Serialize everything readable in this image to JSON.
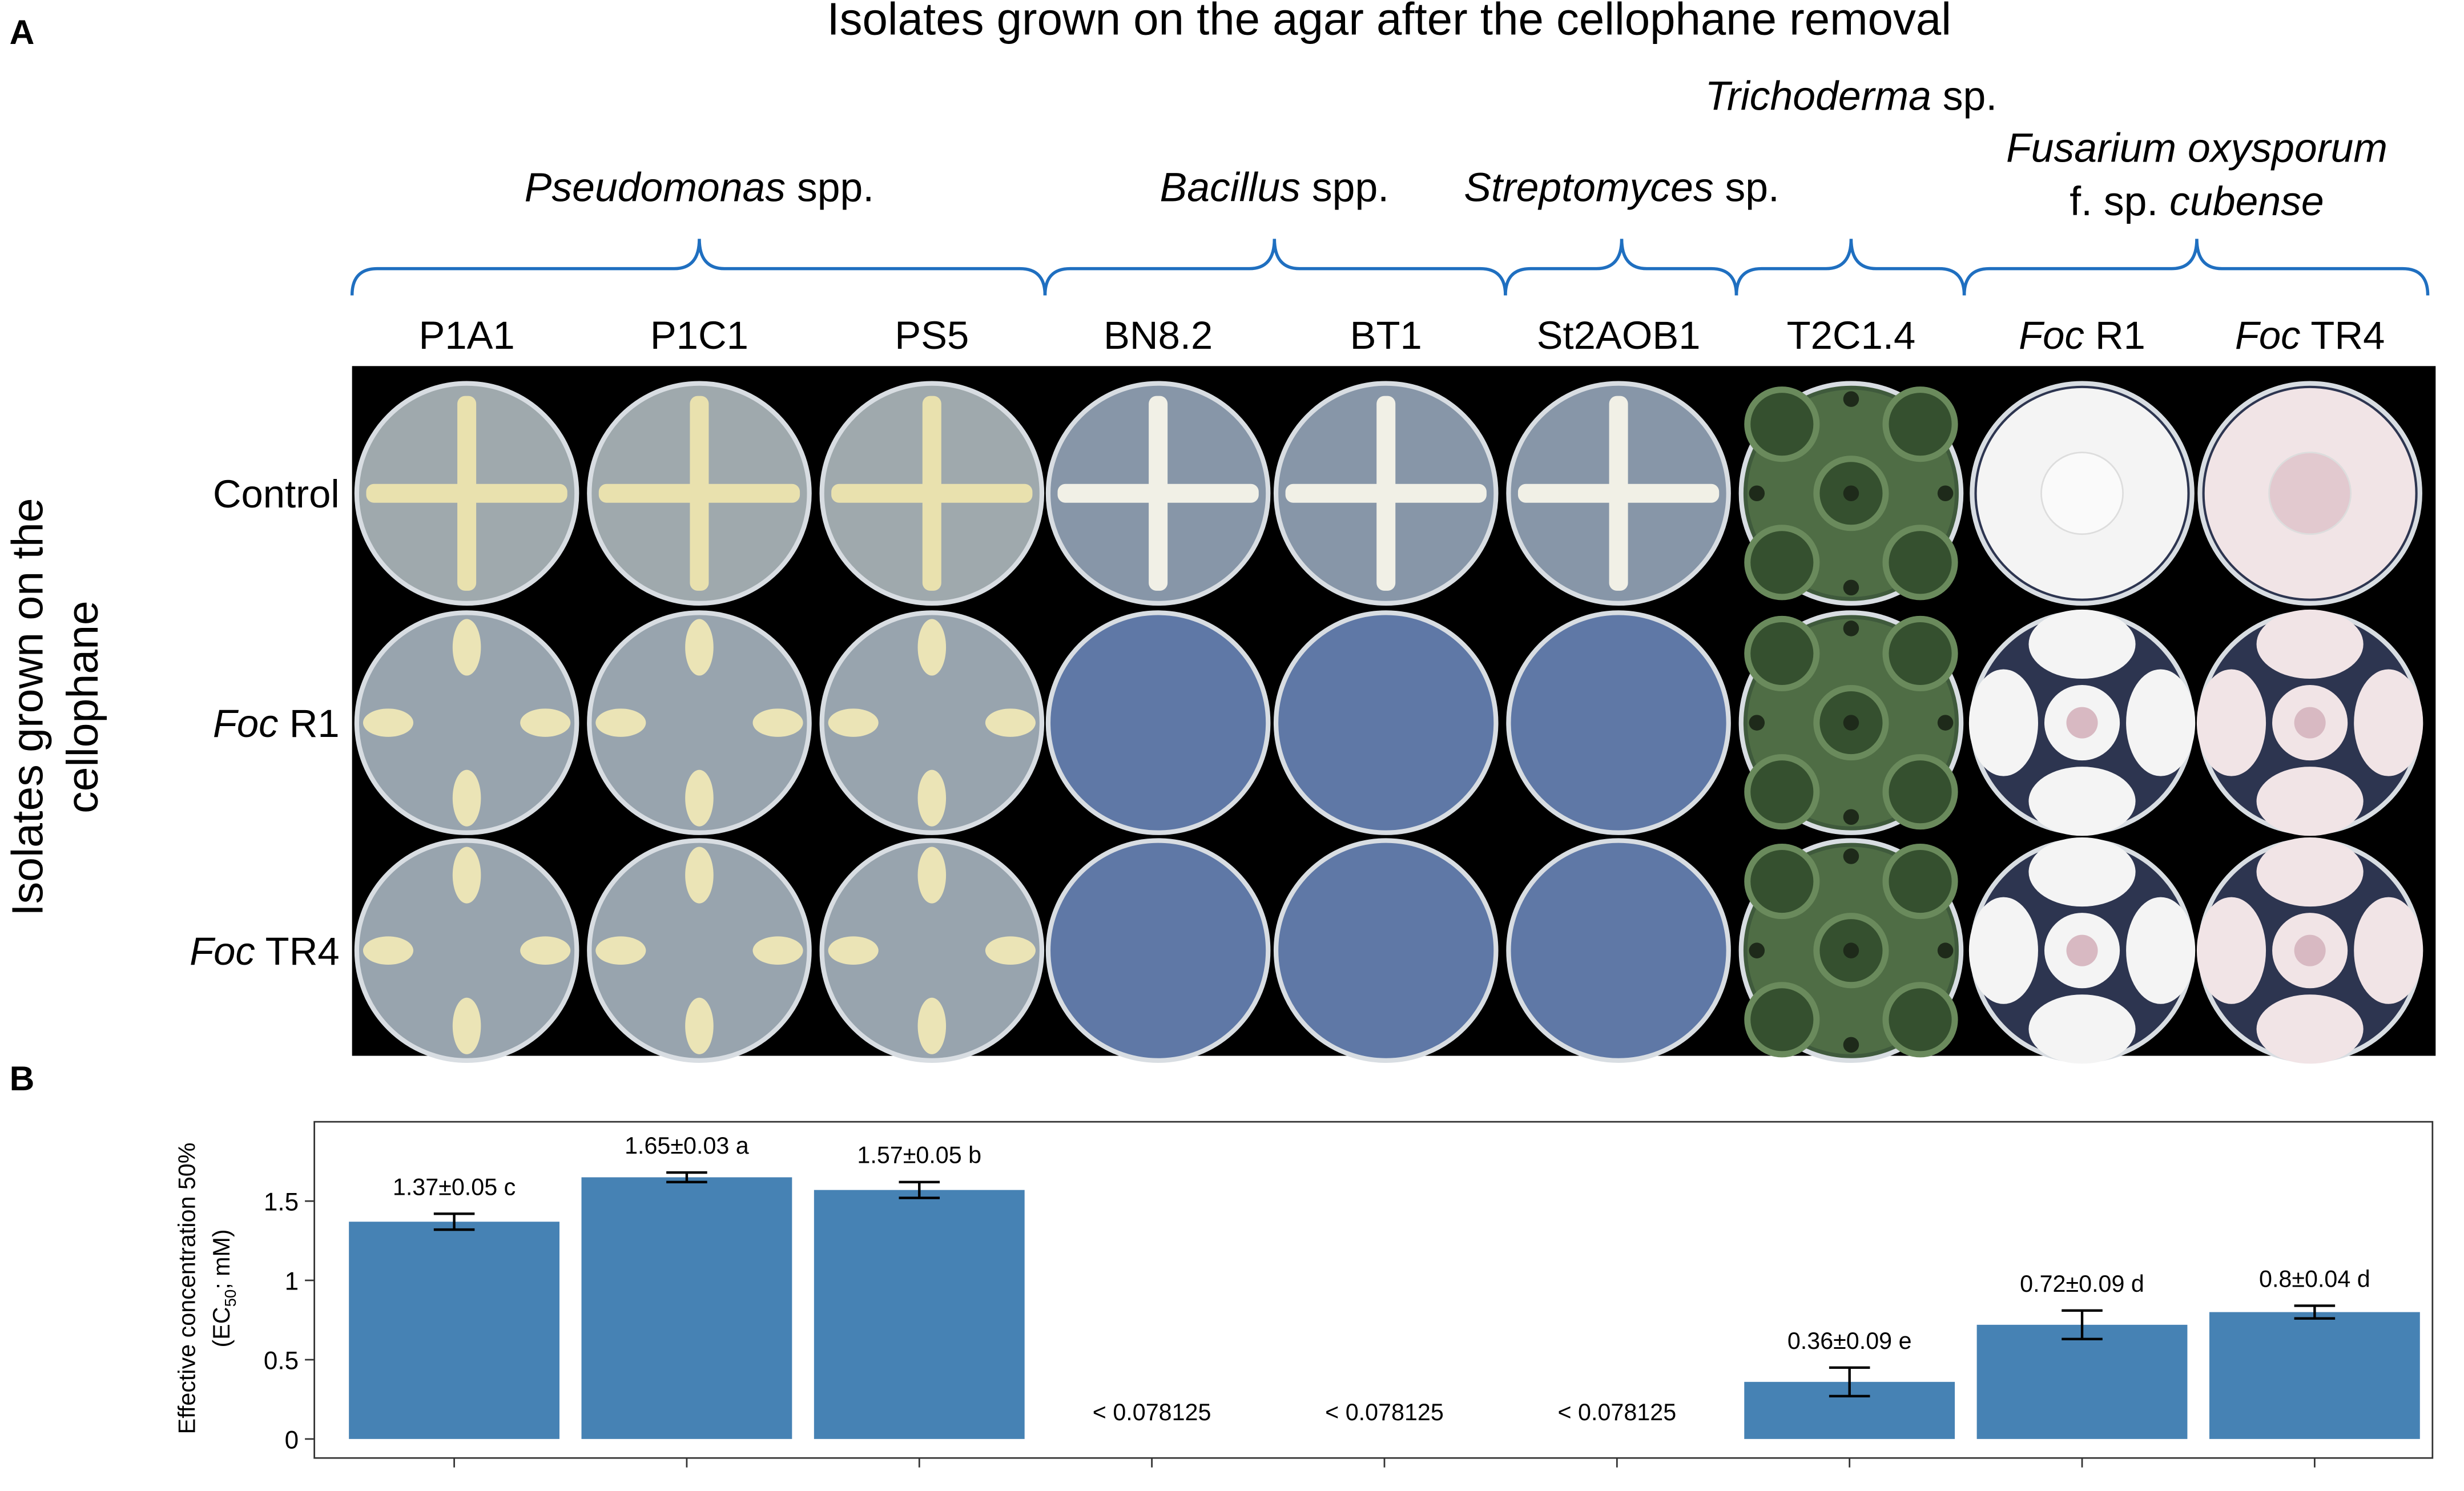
{
  "panel_a": {
    "letter": "A",
    "title": "Isolates grown on the agar after the cellophane removal",
    "side_label": [
      "Isolates grown on the",
      "cellophane"
    ],
    "groups": [
      {
        "lines": [
          [
            "Pseudomonas",
            " spp."
          ]
        ]
      },
      {
        "lines": [
          [
            "Bacillus",
            " spp."
          ]
        ]
      },
      {
        "lines": [
          [
            "Streptomyces",
            " sp."
          ]
        ]
      },
      {
        "lines": [
          [
            "Trichoderma",
            " sp."
          ]
        ]
      },
      {
        "lines": [
          [
            "Fusarium oxysporum"
          ],
          [
            "f. sp. ",
            "cubense"
          ]
        ]
      }
    ],
    "columns": [
      [
        "P1A1"
      ],
      [
        "P1C1"
      ],
      [
        "PS5"
      ],
      [
        "BN8.2"
      ],
      [
        "BT1"
      ],
      [
        "St2AOB1"
      ],
      [
        "T2C1.4"
      ],
      [
        "Foc",
        " R1"
      ],
      [
        "Foc",
        " TR4"
      ]
    ],
    "rows": [
      [
        "Control"
      ],
      [
        "Foc",
        " R1"
      ],
      [
        "Foc",
        " TR4"
      ]
    ]
  },
  "panel_b": {
    "letter": "B"
  },
  "chart_data": {
    "type": "bar",
    "y_label": {
      "line1": "Effective concentration 50%",
      "line2": [
        "(EC",
        "50",
        "; mM)"
      ]
    },
    "categories": [
      null,
      null,
      null,
      null,
      null,
      null,
      null,
      null,
      null
    ],
    "values": [
      1.37,
      1.65,
      1.57,
      null,
      null,
      null,
      0.36,
      0.72,
      0.8
    ],
    "errors": [
      0.05,
      0.03,
      0.05,
      null,
      null,
      null,
      0.09,
      0.09,
      0.04
    ],
    "value_labels": [
      "1.37±0.05 c",
      "1.65±0.03 a",
      "1.57±0.05 b",
      "< 0.078125",
      "< 0.078125",
      "< 0.078125",
      "0.36±0.09 e",
      "0.72±0.09 d",
      "0.8±0.04 d"
    ],
    "color": "#4682b4",
    "ylim": [
      -0.12,
      2.0
    ],
    "yticks": [
      0,
      0.5,
      1,
      1.5
    ]
  }
}
